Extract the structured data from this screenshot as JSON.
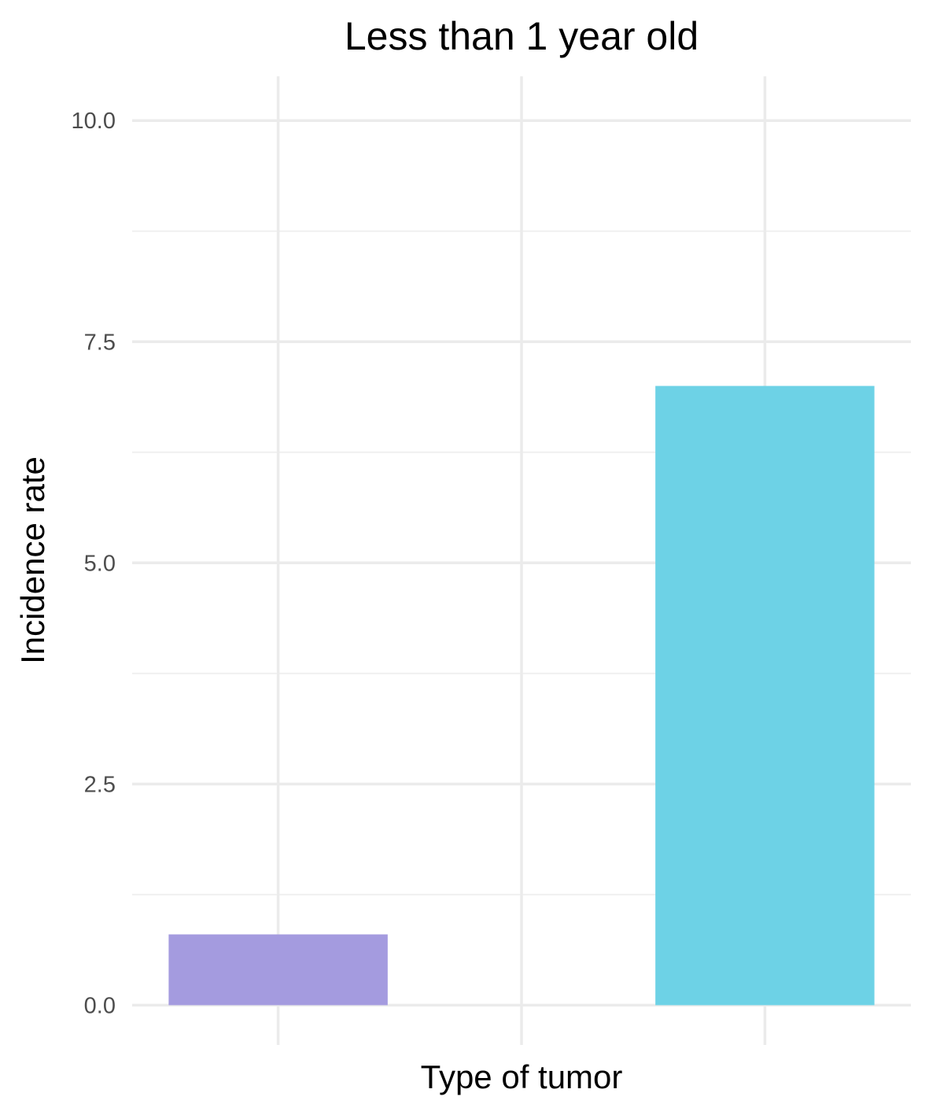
{
  "chart_data": {
    "type": "bar",
    "title": "Less than 1 year old",
    "xlabel": "Type of tumor",
    "ylabel": "Incidence rate",
    "x_ticks": [
      "",
      "",
      ""
    ],
    "bars": [
      {
        "x_position": 1,
        "value": 0.8,
        "color": "#A49BDF"
      },
      {
        "x_position": 3,
        "value": 7.0,
        "color": "#6DD2E6"
      }
    ],
    "xlim": [
      0.4,
      3.6
    ],
    "ylim": [
      -0.45,
      10.5
    ],
    "y_ticks": [
      {
        "value": 0.0,
        "label": "0.0"
      },
      {
        "value": 2.5,
        "label": "2.5"
      },
      {
        "value": 5.0,
        "label": "5.0"
      },
      {
        "value": 7.5,
        "label": "7.5"
      },
      {
        "value": 10.0,
        "label": "10.0"
      }
    ],
    "y_minor_ticks": [
      1.25,
      3.75,
      6.25,
      8.75
    ],
    "grid": true,
    "legend": "none",
    "colors": {
      "grid_major": "#EBEBEB",
      "grid_minor": "#F0F0F0",
      "background": "#FFFFFF"
    }
  }
}
